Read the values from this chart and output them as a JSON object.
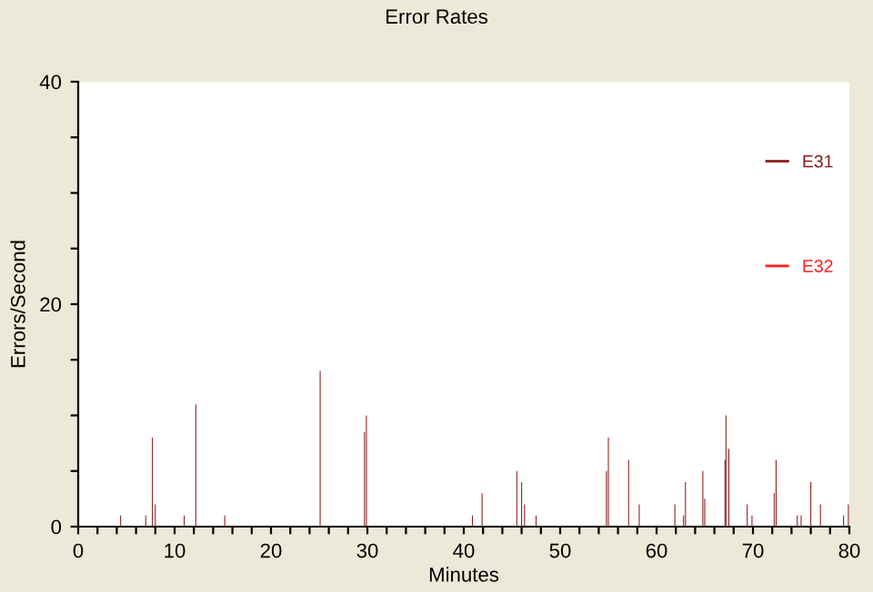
{
  "chart_data": {
    "type": "bar",
    "title": "Error Rates",
    "xlabel": "Minutes",
    "ylabel": "Errors/Second",
    "xlim": [
      0,
      80
    ],
    "xticks": [
      0,
      {
        "value": 2,
        "label": null
      },
      {
        "value": 4,
        "label": null
      },
      {
        "value": 6,
        "label": null
      },
      {
        "value": 8,
        "label": null
      },
      10,
      {
        "value": 12,
        "label": null
      },
      {
        "value": 14,
        "label": null
      },
      {
        "value": 16,
        "label": null
      },
      {
        "value": 18,
        "label": null
      },
      20,
      {
        "value": 22,
        "label": null
      },
      {
        "value": 24,
        "label": null
      },
      {
        "value": 26,
        "label": null
      },
      {
        "value": 28,
        "label": null
      },
      30,
      {
        "value": 32,
        "label": null
      },
      {
        "value": 34,
        "label": null
      },
      {
        "value": 36,
        "label": null
      },
      {
        "value": 38,
        "label": null
      },
      40,
      {
        "value": 42,
        "label": null
      },
      {
        "value": 44,
        "label": null
      },
      {
        "value": 46,
        "label": null
      },
      {
        "value": 48,
        "label": null
      },
      50,
      {
        "value": 52,
        "label": null
      },
      {
        "value": 54,
        "label": null
      },
      {
        "value": 56,
        "label": null
      },
      {
        "value": 58,
        "label": null
      },
      60,
      {
        "value": 62,
        "label": null
      },
      {
        "value": 64,
        "label": null
      },
      {
        "value": 66,
        "label": null
      },
      {
        "value": 68,
        "label": null
      },
      70,
      {
        "value": 72,
        "label": null
      },
      {
        "value": 74,
        "label": null
      },
      {
        "value": 76,
        "label": null
      },
      {
        "value": 78,
        "label": null
      },
      80
    ],
    "ylim": [
      0,
      40
    ],
    "yticks": [
      0,
      {
        "value": 5,
        "label": null
      },
      {
        "value": 10,
        "label": null
      },
      {
        "value": 15,
        "label": null
      },
      20,
      {
        "value": 25,
        "label": null
      },
      {
        "value": 30,
        "label": null
      },
      {
        "value": 35,
        "label": null
      },
      40
    ],
    "grid": false,
    "legend": "right",
    "series": [
      {
        "name": "E31",
        "color": "#8b1a1a",
        "x": [
          4.4,
          7.0,
          7.7,
          8.0,
          11.0,
          12.2,
          15.2,
          25.1,
          29.7,
          29.9,
          40.9,
          41.9,
          45.5,
          46.0,
          46.3,
          47.5,
          54.8,
          55.0,
          57.1,
          58.2,
          61.9,
          62.8,
          63.0,
          64.8,
          65.0,
          67.1,
          67.2,
          67.5,
          69.4,
          69.9,
          72.2,
          72.4,
          74.6,
          75.0,
          76.0,
          77.0,
          79.4,
          79.9
        ],
        "values": [
          1,
          1,
          8,
          2,
          1,
          11,
          1,
          14,
          8.5,
          10,
          1,
          3,
          5,
          4,
          2,
          1,
          5,
          8,
          6,
          2,
          2,
          1,
          4,
          5,
          2.5,
          6,
          10,
          7,
          2,
          1,
          3,
          6,
          1,
          1,
          4,
          2,
          1,
          2
        ]
      },
      {
        "name": "E32",
        "color": "#ff2020"
      }
    ]
  }
}
